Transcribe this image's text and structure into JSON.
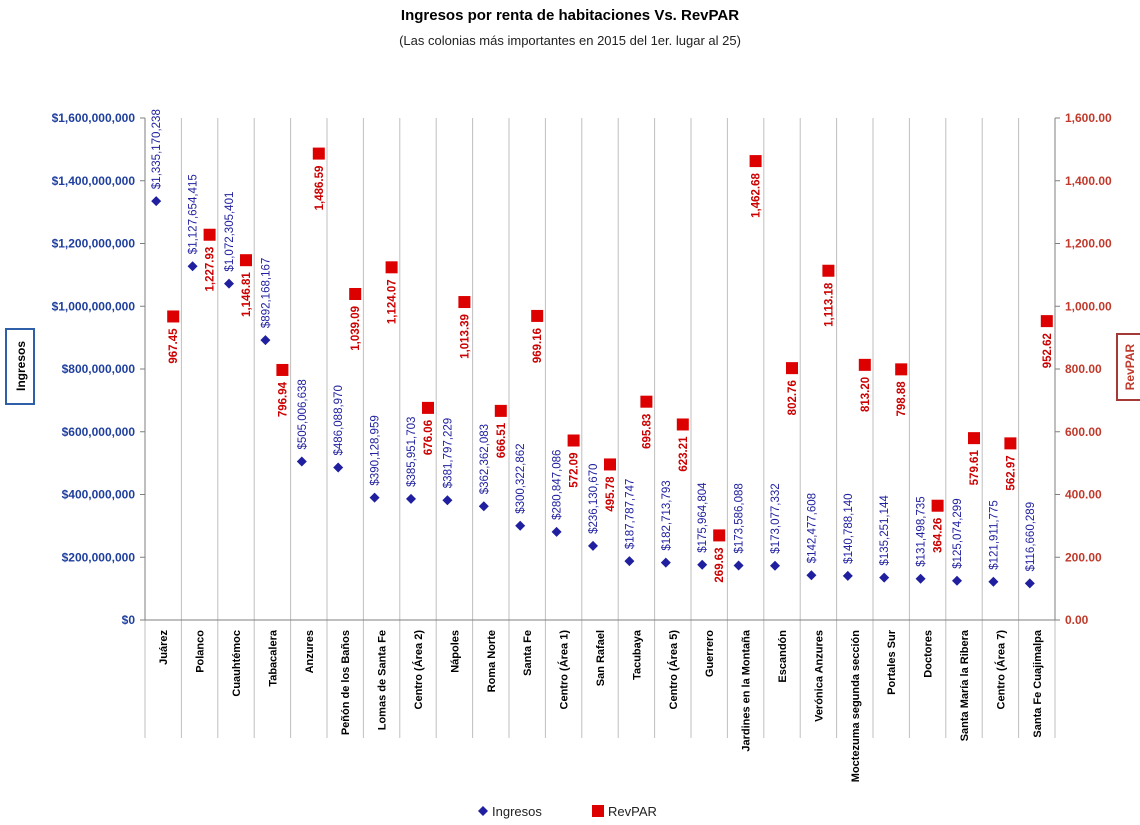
{
  "chart_data": {
    "type": "scatter",
    "title": "Ingresos por renta de habitaciones Vs. RevPAR",
    "subtitle": "(Las colonias más importantes  en 2015 del 1er. lugar al 25)",
    "ylabel": "Ingresos",
    "y2label": "RevPAR",
    "ylim": [
      0,
      1600000000
    ],
    "y2lim": [
      0,
      1600
    ],
    "yticks": [
      "$0",
      "$200,000,000",
      "$400,000,000",
      "$600,000,000",
      "$800,000,000",
      "$1,000,000,000",
      "$1,200,000,000",
      "$1,400,000,000",
      "$1,600,000,000"
    ],
    "y2ticks": [
      "0.00",
      "200.00",
      "400.00",
      "600.00",
      "800.00",
      "1,000.00",
      "1,200.00",
      "1,400.00",
      "1,600.00"
    ],
    "grid": "vertical",
    "legend_position": "bottom",
    "categories": [
      "Juárez",
      "Polanco",
      "Cuauhtémoc",
      "Tabacalera",
      "Anzures",
      "Peñón de los Baños",
      "Lomas de Santa Fe",
      "Centro (Área 2)",
      "Nápoles",
      "Roma Norte",
      "Santa Fe",
      "Centro (Área 1)",
      "San Rafael",
      "Tacubaya",
      "Centro (Área 5)",
      "Guerrero",
      "Jardines en la Montaña",
      "Escandón",
      "Verónica Anzures",
      "Moctezuma segunda sección",
      "Portales Sur",
      "Doctores",
      "Santa María la Ribera",
      "Centro (Área 7)",
      "Santa Fe Cuajimalpa"
    ],
    "series": [
      {
        "name": "Ingresos",
        "color": "#1f1f9f",
        "marker": "diamond",
        "axis": "left",
        "values": [
          1335170238,
          1127654415,
          1072305401,
          892168167,
          505006638,
          486088970,
          390128959,
          385951703,
          381797229,
          362362083,
          300322862,
          280847086,
          236130670,
          187787747,
          182713793,
          175964804,
          173586088,
          173077332,
          142477608,
          140788140,
          135251144,
          131498735,
          125074299,
          121911775,
          116660289
        ],
        "labels": [
          "$1,335,170,238",
          "$1,127,654,415",
          "$1,072,305,401",
          "$892,168,167",
          "$505,006,638",
          "$486,088,970",
          "$390,128,959",
          "$385,951,703",
          "$381,797,229",
          "$362,362,083",
          "$300,322,862",
          "$280,847,086",
          "$236,130,670",
          "$187,787,747",
          "$182,713,793",
          "$175,964,804",
          "$173,586,088",
          "$173,077,332",
          "$142,477,608",
          "$140,788,140",
          "$135,251,144",
          "$131,498,735",
          "$125,074,299",
          "$121,911,775",
          "$116,660,289"
        ]
      },
      {
        "name": "RevPAR",
        "color": "#dd0000",
        "marker": "square",
        "axis": "right",
        "values": [
          967.45,
          1227.93,
          1146.81,
          796.94,
          1486.59,
          1039.09,
          1124.07,
          676.06,
          1013.39,
          666.51,
          969.16,
          572.09,
          495.78,
          695.83,
          623.21,
          269.63,
          1462.68,
          802.76,
          1113.18,
          813.2,
          798.88,
          364.26,
          579.61,
          562.97,
          952.62
        ],
        "labels": [
          "967.45",
          "1,227.93",
          "1,146.81",
          "796.94",
          "1,486.59",
          "1,039.09",
          "1,124.07",
          "676.06",
          "1,013.39",
          "666.51",
          "969.16",
          "572.09",
          "495.78",
          "695.83",
          "623.21",
          "269.63",
          "1,462.68",
          "802.76",
          "1,113.18",
          "813.20",
          "798.88",
          "364.26",
          "579.61",
          "562.97",
          "952.62"
        ]
      }
    ]
  }
}
